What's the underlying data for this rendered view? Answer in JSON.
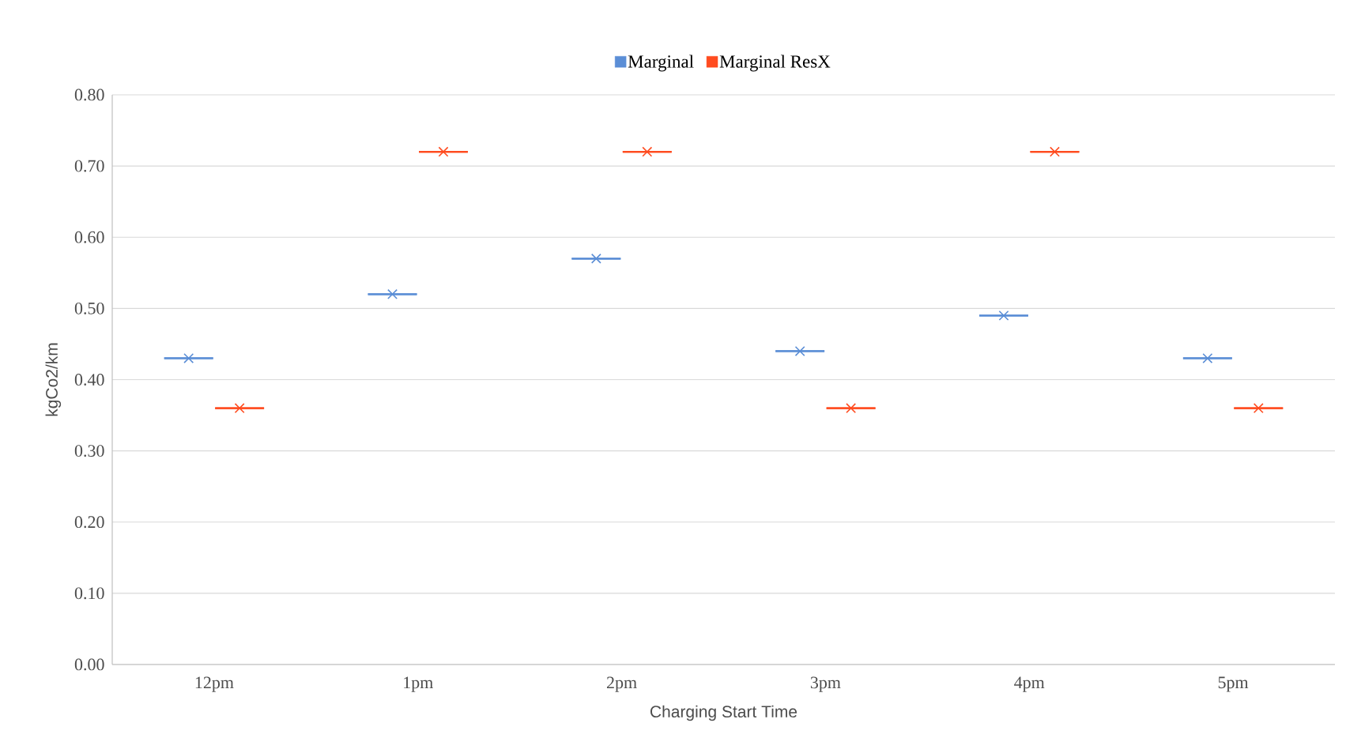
{
  "chart_data": {
    "type": "box",
    "xlabel": "Charging Start Time",
    "ylabel": "kgCo2/km",
    "categories": [
      "12pm",
      "1pm",
      "2pm",
      "3pm",
      "4pm",
      "5pm"
    ],
    "ylim": [
      0,
      0.8
    ],
    "yticks": [
      {
        "value": 0,
        "label": "0.00"
      },
      {
        "value": 0.1,
        "label": "0.10"
      },
      {
        "value": 0.2,
        "label": "0.20"
      },
      {
        "value": 0.3,
        "label": "0.30"
      },
      {
        "value": 0.4,
        "label": "0.40"
      },
      {
        "value": 0.5,
        "label": "0.50"
      },
      {
        "value": 0.6,
        "label": "0.60"
      },
      {
        "value": 0.7,
        "label": "0.70"
      },
      {
        "value": 0.8,
        "label": "0.80"
      }
    ],
    "grid": "y",
    "legend": "top",
    "marker": "cross",
    "series": [
      {
        "name": "Marginal",
        "color": "#5b8ed6",
        "boxes": [
          {
            "low": 0.43,
            "q1": 0.43,
            "median": 0.43,
            "q3": 0.43,
            "high": 0.43,
            "mean": 0.43
          },
          {
            "low": 0.52,
            "q1": 0.52,
            "median": 0.52,
            "q3": 0.52,
            "high": 0.52,
            "mean": 0.52
          },
          {
            "low": 0.57,
            "q1": 0.57,
            "median": 0.57,
            "q3": 0.57,
            "high": 0.57,
            "mean": 0.57
          },
          {
            "low": 0.44,
            "q1": 0.44,
            "median": 0.44,
            "q3": 0.44,
            "high": 0.44,
            "mean": 0.44
          },
          {
            "low": 0.49,
            "q1": 0.49,
            "median": 0.49,
            "q3": 0.49,
            "high": 0.49,
            "mean": 0.49
          },
          {
            "low": 0.43,
            "q1": 0.43,
            "median": 0.43,
            "q3": 0.43,
            "high": 0.43,
            "mean": 0.43
          }
        ]
      },
      {
        "name": "Marginal ResX",
        "color": "#ff4b1f",
        "boxes": [
          {
            "low": 0.36,
            "q1": 0.36,
            "median": 0.36,
            "q3": 0.36,
            "high": 0.36,
            "mean": 0.36
          },
          {
            "low": 0.72,
            "q1": 0.72,
            "median": 0.72,
            "q3": 0.72,
            "high": 0.72,
            "mean": 0.72
          },
          {
            "low": 0.72,
            "q1": 0.72,
            "median": 0.72,
            "q3": 0.72,
            "high": 0.72,
            "mean": 0.72
          },
          {
            "low": 0.36,
            "q1": 0.36,
            "median": 0.36,
            "q3": 0.36,
            "high": 0.36,
            "mean": 0.36
          },
          {
            "low": 0.72,
            "q1": 0.72,
            "median": 0.72,
            "q3": 0.72,
            "high": 0.72,
            "mean": 0.72
          },
          {
            "low": 0.36,
            "q1": 0.36,
            "median": 0.36,
            "q3": 0.36,
            "high": 0.36,
            "mean": 0.36
          }
        ]
      }
    ]
  }
}
